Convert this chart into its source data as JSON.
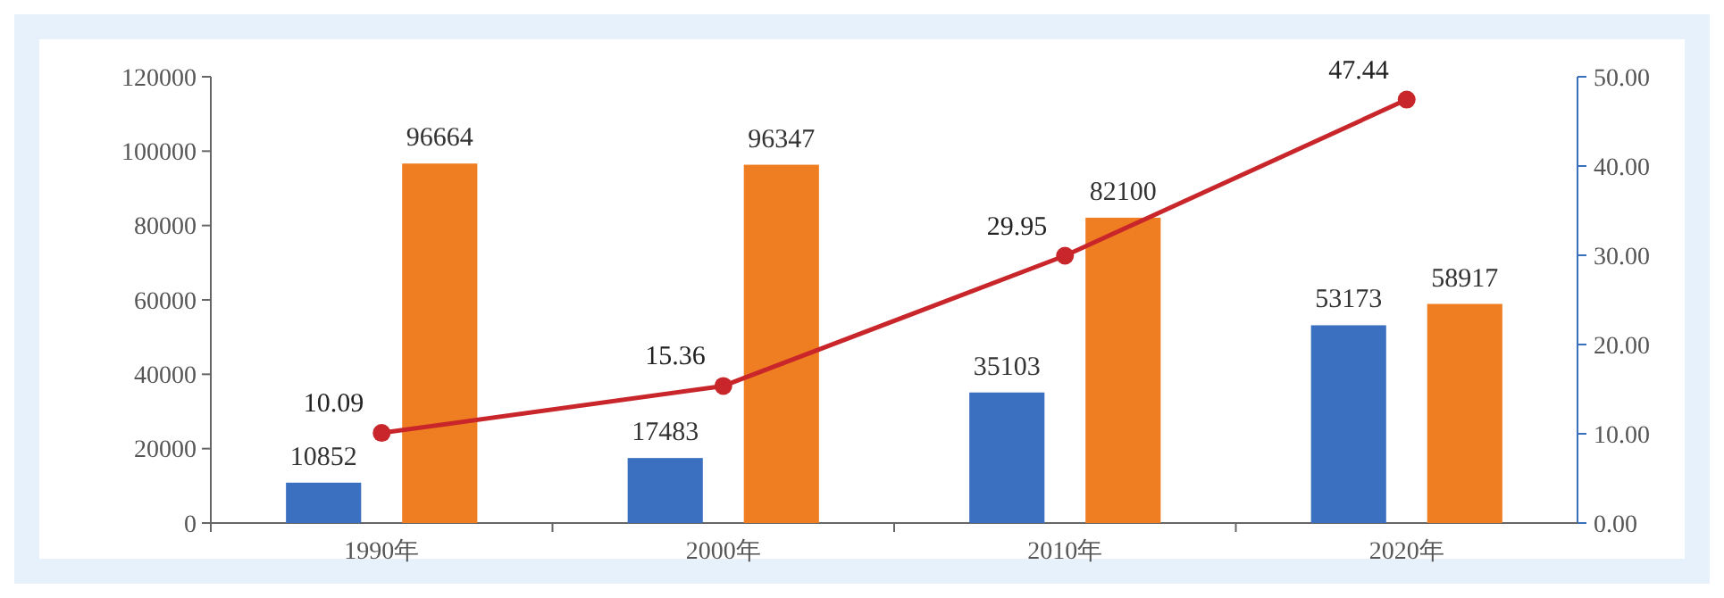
{
  "chart_data": {
    "type": "bar",
    "categories": [
      "1990年",
      "2000年",
      "2010年",
      "2020年"
    ],
    "series": [
      {
        "color": "#3b6fbf",
        "values": [
          10852,
          17483,
          35103,
          53173
        ]
      },
      {
        "color": "#ef7d22",
        "values": [
          96664,
          96347,
          82100,
          58917
        ]
      },
      {
        "type": "line",
        "axis": "y2",
        "color": "#c8262a",
        "values": [
          10.09,
          15.36,
          29.95,
          47.44
        ]
      }
    ],
    "ylim": [
      0,
      120000
    ],
    "yticks": [
      0,
      20000,
      40000,
      60000,
      80000,
      100000,
      120000
    ],
    "y2lim": [
      0,
      50
    ],
    "y2ticks": [
      {
        "value": 0,
        "label": "0.00"
      },
      {
        "value": 10,
        "label": "10.00"
      },
      {
        "value": 20,
        "label": "20.00"
      },
      {
        "value": 30,
        "label": "30.00"
      },
      {
        "value": 40,
        "label": "40.00"
      },
      {
        "value": 50,
        "label": "50.00"
      }
    ],
    "marker": "circle",
    "data_labels": true,
    "grid": false
  }
}
